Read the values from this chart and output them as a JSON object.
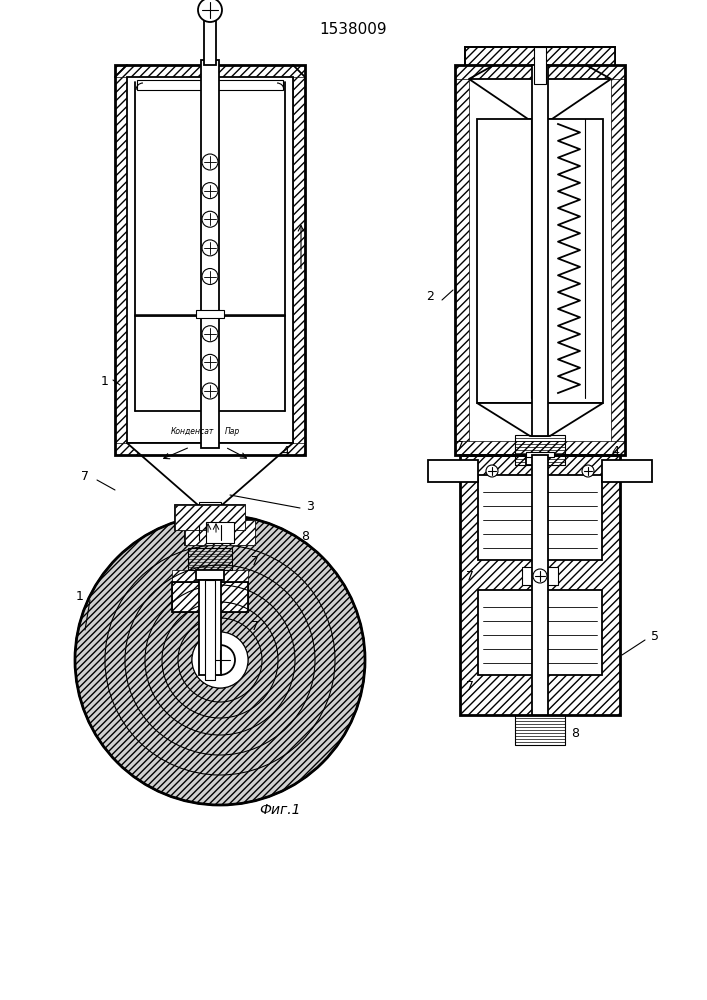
{
  "title": "1538009",
  "fig_caption": "Фиг.1",
  "bg_color": "#ffffff",
  "line_color": "#000000",
  "kondensate_text": "Конденсат",
  "par_text": "Пар",
  "label_1": "1",
  "label_2": "2",
  "label_3": "3",
  "label_4": "4",
  "label_5": "5",
  "label_7": "7",
  "label_8": "8"
}
